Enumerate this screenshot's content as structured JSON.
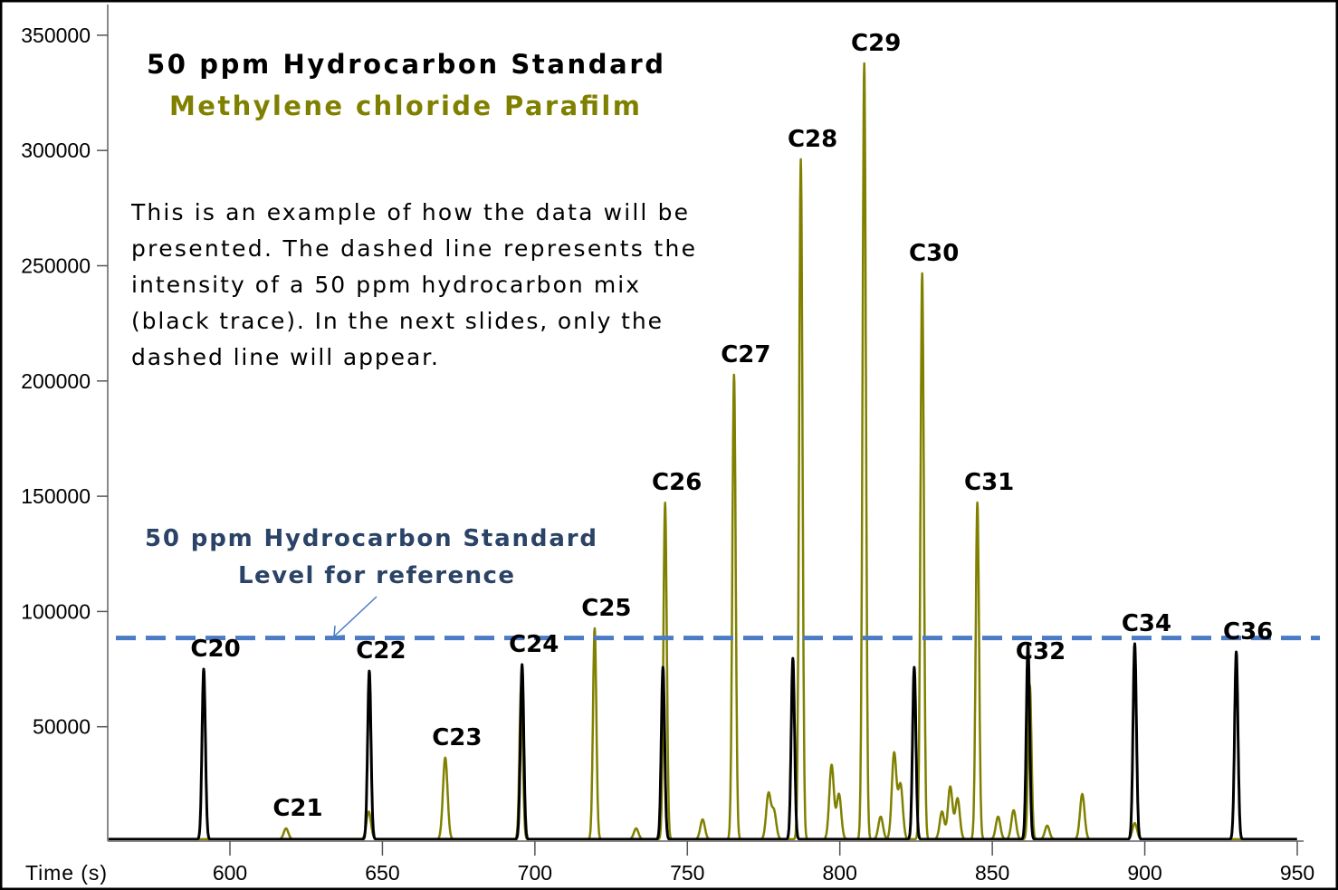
{
  "chart_data": {
    "type": "line",
    "title": "50 ppm Hydrocarbon Standard",
    "subtitle": "Methylene chloride Parafilm",
    "xlabel": "Time (s)",
    "ylabel": "",
    "xlim": [
      560,
      952
    ],
    "ylim": [
      0,
      360000
    ],
    "x_ticks": [
      600,
      650,
      700,
      750,
      800,
      850,
      900,
      950
    ],
    "y_ticks": [
      50000,
      100000,
      150000,
      200000,
      250000,
      300000,
      350000
    ],
    "grid": false,
    "series": [
      {
        "color": "#808000",
        "peaks": [
          {
            "time": 618.4,
            "intensity": 4700
          },
          {
            "time": 645.5,
            "intensity": 12000
          },
          {
            "time": 670.6,
            "intensity": 35400
          },
          {
            "time": 695.5,
            "intensity": 66800
          },
          {
            "time": 719.6,
            "intensity": 91500
          },
          {
            "time": 733.2,
            "intensity": 4700
          },
          {
            "time": 742.7,
            "intensity": 146000
          },
          {
            "time": 755.0,
            "intensity": 8600
          },
          {
            "time": 765.3,
            "intensity": 201500
          },
          {
            "time": 776.6,
            "intensity": 19600
          },
          {
            "time": 778.4,
            "intensity": 12000
          },
          {
            "time": 787.2,
            "intensity": 295000
          },
          {
            "time": 797.3,
            "intensity": 32200
          },
          {
            "time": 799.7,
            "intensity": 19600
          },
          {
            "time": 808.0,
            "intensity": 336600
          },
          {
            "time": 813.4,
            "intensity": 9800
          },
          {
            "time": 817.8,
            "intensity": 37300
          },
          {
            "time": 819.9,
            "intensity": 23600
          },
          {
            "time": 827.0,
            "intensity": 245500
          },
          {
            "time": 833.5,
            "intensity": 12000
          },
          {
            "time": 836.2,
            "intensity": 22800
          },
          {
            "time": 838.6,
            "intensity": 17700
          },
          {
            "time": 845.1,
            "intensity": 146100
          },
          {
            "time": 851.9,
            "intensity": 9800
          },
          {
            "time": 857.0,
            "intensity": 12600
          },
          {
            "time": 862.3,
            "intensity": 66800
          },
          {
            "time": 868.0,
            "intensity": 5900
          },
          {
            "time": 879.5,
            "intensity": 19600
          },
          {
            "time": 896.7,
            "intensity": 7000
          }
        ]
      },
      {
        "color": "#000000",
        "peaks": [
          {
            "time": 591.4,
            "intensity": 73800
          },
          {
            "time": 645.7,
            "intensity": 73000
          },
          {
            "time": 695.8,
            "intensity": 75800
          },
          {
            "time": 742.0,
            "intensity": 74600
          },
          {
            "time": 784.6,
            "intensity": 78500
          },
          {
            "time": 824.4,
            "intensity": 74600
          },
          {
            "time": 861.7,
            "intensity": 84400
          },
          {
            "time": 896.7,
            "intensity": 84800
          },
          {
            "time": 930.0,
            "intensity": 81300
          }
        ]
      }
    ],
    "reference_line": {
      "intensity": 88500,
      "color": "#4a7bc4",
      "style": "dashed"
    },
    "peak_labels": [
      {
        "text": "C20",
        "time": 591.4
      },
      {
        "text": "C21",
        "time": 618.4
      },
      {
        "text": "C22",
        "time": 645.7
      },
      {
        "text": "C23",
        "time": 670.6
      },
      {
        "text": "C24",
        "time": 695.8
      },
      {
        "text": "C25",
        "time": 719.6
      },
      {
        "text": "C26",
        "time": 742.7
      },
      {
        "text": "C27",
        "time": 765.3
      },
      {
        "text": "C28",
        "time": 787.2
      },
      {
        "text": "C29",
        "time": 808.0
      },
      {
        "text": "C30",
        "time": 827.0
      },
      {
        "text": "C31",
        "time": 845.1
      },
      {
        "text": "C32",
        "time": 862.0
      },
      {
        "text": "C34",
        "time": 896.7
      },
      {
        "text": "C36",
        "time": 930.0
      }
    ],
    "annotations": {
      "description": [
        "This is an example of how the data will be",
        "presented. The dashed line represents the",
        "intensity of a 50 ppm hydrocarbon mix",
        "(black trace). In the next slides, only the",
        "dashed line will appear."
      ],
      "reference_label": [
        "50 ppm Hydrocarbon Standard",
        "Level for reference"
      ]
    }
  }
}
